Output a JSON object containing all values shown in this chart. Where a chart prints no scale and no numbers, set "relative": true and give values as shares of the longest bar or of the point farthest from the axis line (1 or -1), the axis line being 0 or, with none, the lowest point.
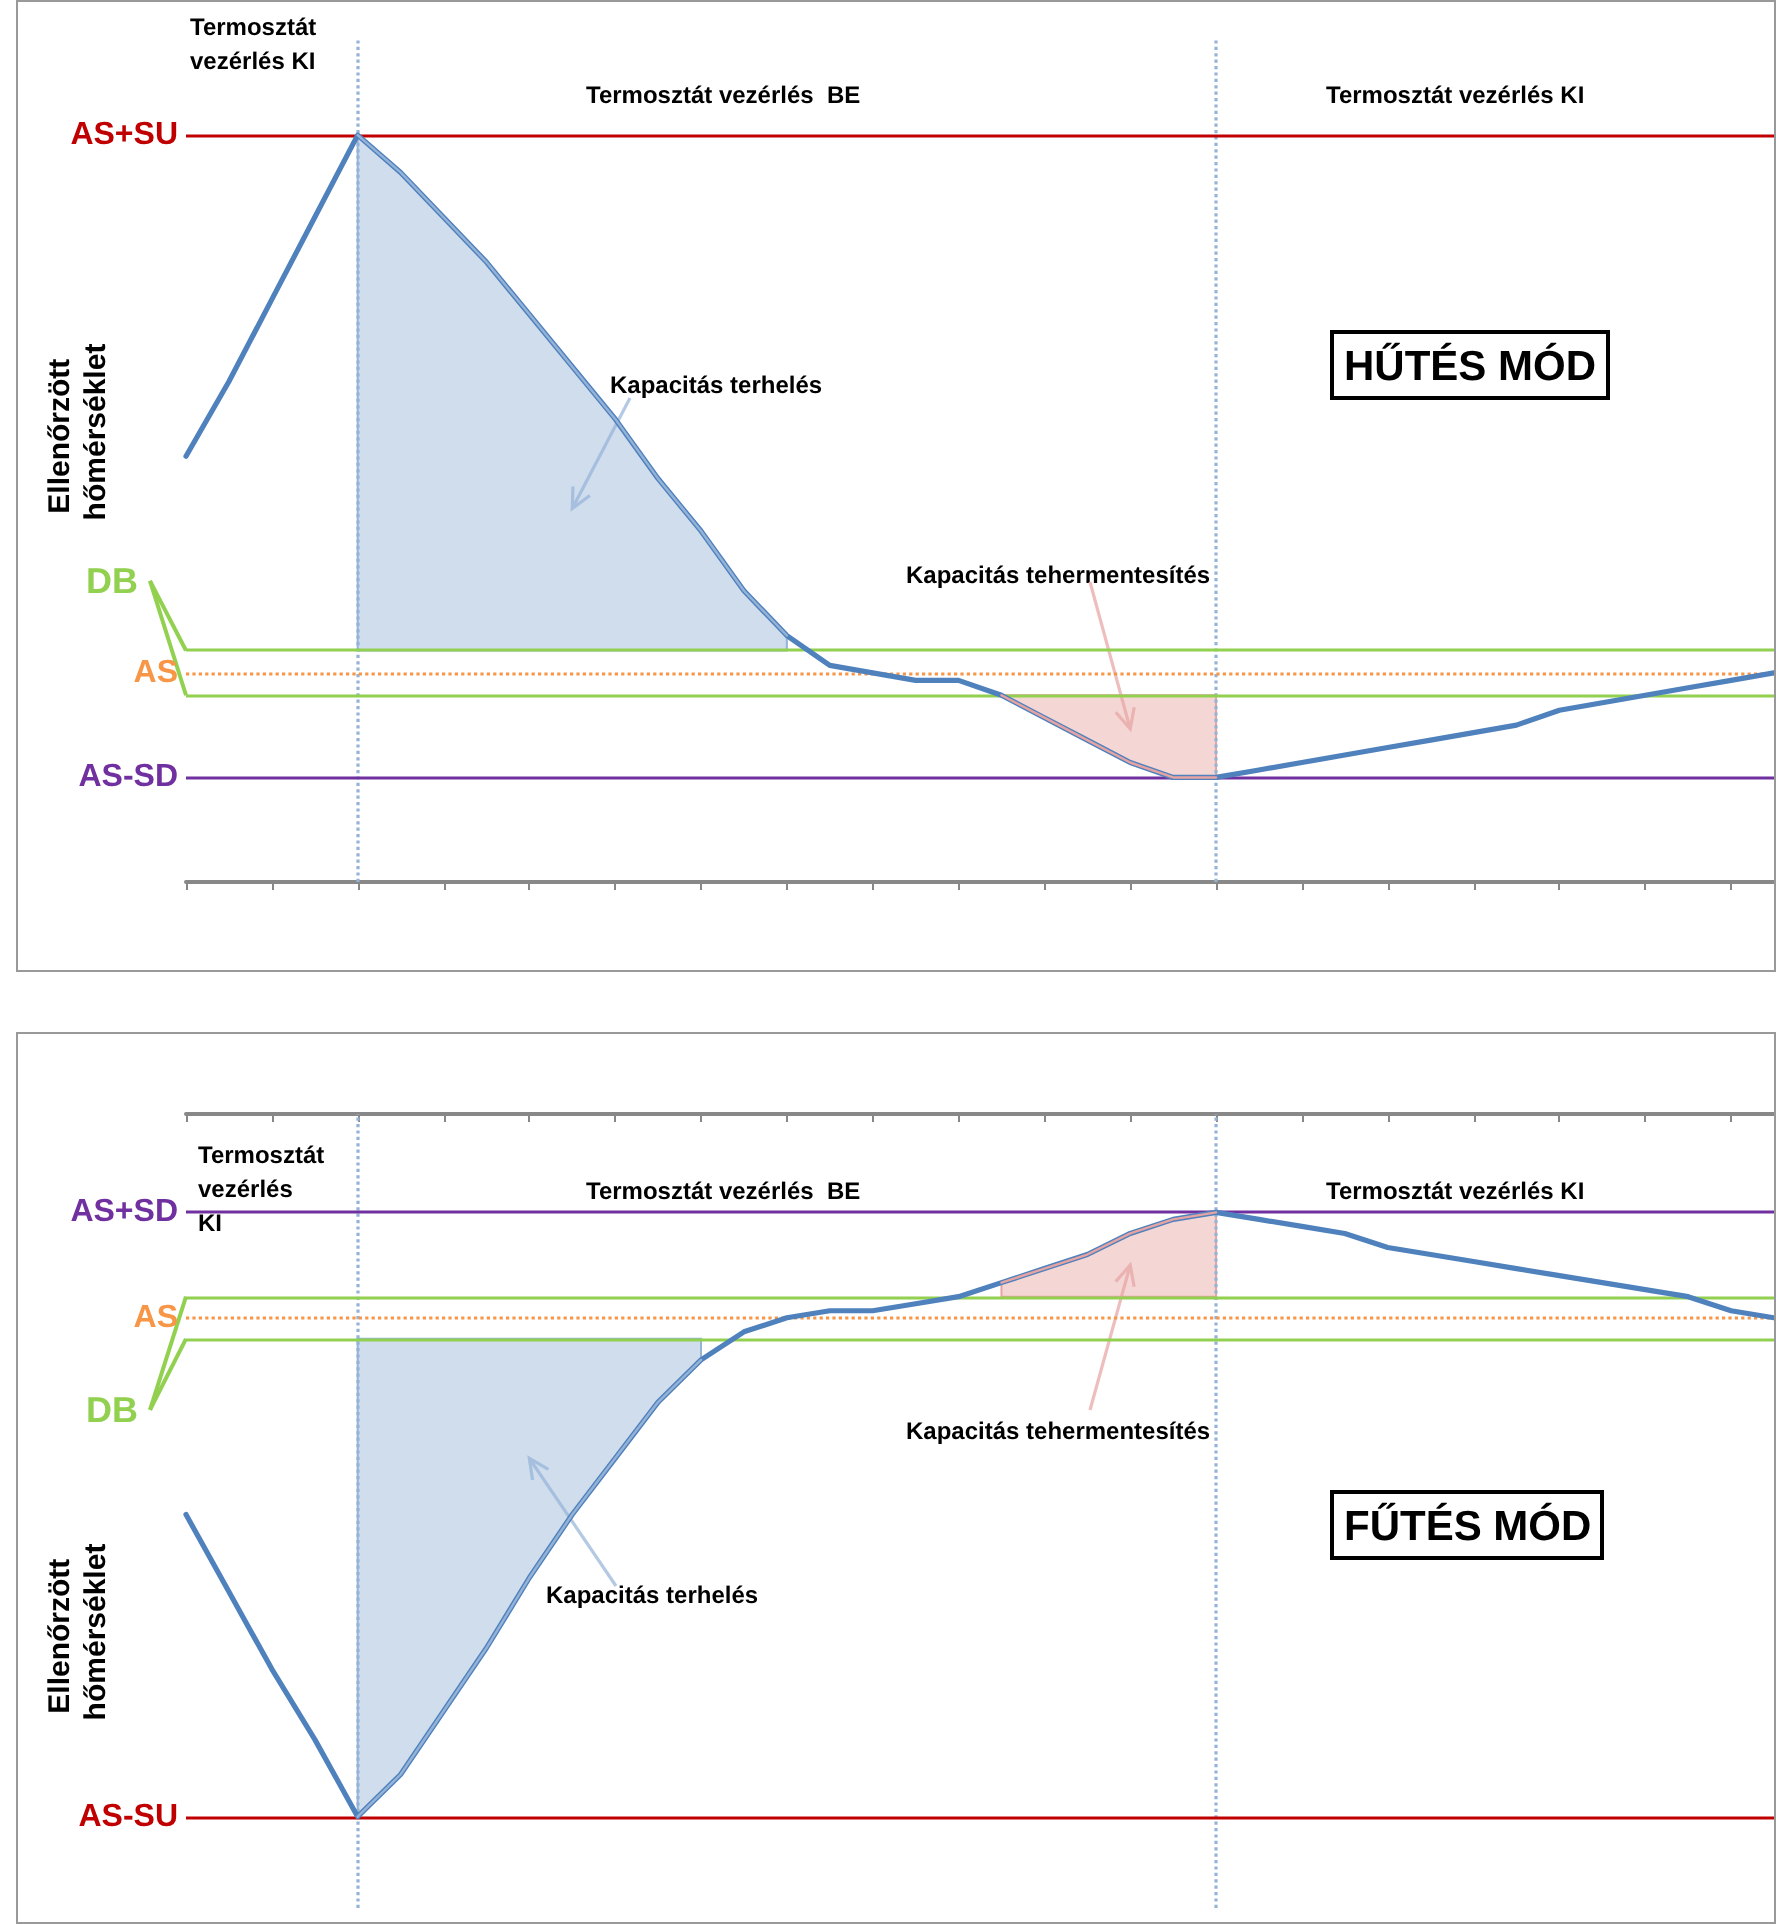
{
  "chart_data": [
    {
      "type": "line",
      "title": "HŰTÉS MÓD",
      "ylabel": "Ellenőrzött hőmérséklet",
      "relative": true,
      "tick_labels": false,
      "marker": "none",
      "categories": [
        null,
        null,
        null,
        null,
        null,
        null,
        null,
        null,
        null,
        null,
        null,
        null,
        null,
        null,
        null,
        null,
        null,
        null,
        null,
        null,
        null,
        null,
        null,
        null,
        null,
        null,
        null,
        null,
        null,
        null,
        null,
        null,
        null,
        null,
        null,
        null,
        null,
        null
      ],
      "series": [
        {
          "color": "#4f81bd",
          "values": [
            0.57,
            0.67,
            0.78,
            0.89,
            1,
            0.95,
            0.89,
            0.83,
            0.76,
            0.69,
            0.62,
            0.54,
            0.47,
            0.39,
            0.33,
            0.29,
            0.28,
            0.27,
            0.27,
            0.25,
            0.22,
            0.19,
            0.16,
            0.14,
            0.14,
            0.15,
            0.16,
            0.17,
            0.18,
            0.19,
            0.2,
            0.21,
            0.23,
            0.24,
            0.25,
            0.26,
            0.27,
            0.28
          ]
        },
        {
          "color": "#95b3d7",
          "values": [
            null,
            null,
            null,
            null,
            1,
            0.95,
            0.89,
            0.83,
            0.76,
            0.69,
            0.62,
            0.54,
            0.47,
            0.39,
            0.33,
            null,
            null,
            null,
            null,
            null,
            null,
            null,
            null,
            null,
            null,
            null,
            null,
            null,
            null,
            null,
            null,
            null,
            null,
            null,
            null,
            null,
            null,
            null
          ],
          "lower": [
            null,
            null,
            null,
            null,
            0.31,
            0.31,
            0.31,
            0.31,
            0.31,
            0.31,
            0.31,
            0.31,
            0.31,
            0.31,
            0.31,
            null,
            null,
            null,
            null,
            null,
            null,
            null,
            null,
            null,
            null,
            null,
            null,
            null,
            null,
            null,
            null,
            null,
            null,
            null,
            null,
            null,
            null,
            null
          ],
          "upper": [
            null,
            null,
            null,
            null,
            1,
            0.95,
            0.89,
            0.83,
            0.76,
            0.69,
            0.62,
            0.54,
            0.47,
            0.39,
            0.33,
            null,
            null,
            null,
            null,
            null,
            null,
            null,
            null,
            null,
            null,
            null,
            null,
            null,
            null,
            null,
            null,
            null,
            null,
            null,
            null,
            null,
            null,
            null
          ]
        },
        {
          "color": "#e6a3a1",
          "values": [
            null,
            null,
            null,
            null,
            null,
            null,
            null,
            null,
            null,
            null,
            null,
            null,
            null,
            null,
            null,
            null,
            null,
            null,
            null,
            0.25,
            0.22,
            0.19,
            0.16,
            0.14,
            0.14,
            null,
            null,
            null,
            null,
            null,
            null,
            null,
            null,
            null,
            null,
            null,
            null,
            null
          ],
          "lower": [
            null,
            null,
            null,
            null,
            null,
            null,
            null,
            null,
            null,
            null,
            null,
            null,
            null,
            null,
            null,
            null,
            null,
            null,
            null,
            0.25,
            0.22,
            0.19,
            0.16,
            0.14,
            0.14,
            null,
            null,
            null,
            null,
            null,
            null,
            null,
            null,
            null,
            null,
            null,
            null,
            null
          ],
          "upper": [
            null,
            null,
            null,
            null,
            null,
            null,
            null,
            null,
            null,
            null,
            null,
            null,
            null,
            null,
            null,
            null,
            null,
            null,
            null,
            0.25,
            0.25,
            0.25,
            0.25,
            0.25,
            0.25,
            null,
            null,
            null,
            null,
            null,
            null,
            null,
            null,
            null,
            null,
            null,
            null,
            null
          ]
        }
      ],
      "ref_lines": [
        {
          "axis": "y",
          "value": 1,
          "label": "AS+SU",
          "color": "#c00000"
        },
        {
          "axis": "y",
          "value": 0.31,
          "label": "DB",
          "color": "#92d050"
        },
        {
          "axis": "y",
          "value": 0.28,
          "label": "AS",
          "color": "#f79646",
          "line_style": "dotted"
        },
        {
          "axis": "y",
          "value": 0.25,
          "color": "#92d050"
        },
        {
          "axis": "y",
          "value": 0.14,
          "label": "AS-SD",
          "color": "#7030a0"
        }
      ],
      "annotations": [
        "Termosztát vezérlés KI",
        "Termosztát vezérlés  BE",
        "Termosztát vezérlés KI",
        "Kapacitás terhelés",
        "Kapacitás tehermentesítés"
      ]
    },
    {
      "type": "line",
      "title": "FŰTÉS MÓD",
      "ylabel": "Ellenőrzött hőmérséklet",
      "relative": true,
      "tick_labels": false,
      "marker": "none",
      "categories": [
        null,
        null,
        null,
        null,
        null,
        null,
        null,
        null,
        null,
        null,
        null,
        null,
        null,
        null,
        null,
        null,
        null,
        null,
        null,
        null,
        null,
        null,
        null,
        null,
        null,
        null,
        null,
        null,
        null,
        null,
        null,
        null,
        null,
        null,
        null,
        null,
        null,
        null
      ],
      "series": [
        {
          "color": "#4f81bd",
          "values": [
            -0.57,
            -0.68,
            -0.79,
            -0.89,
            -1,
            -0.94,
            -0.85,
            -0.76,
            -0.66,
            -0.57,
            -0.49,
            -0.41,
            -0.35,
            -0.31,
            -0.29,
            -0.28,
            -0.28,
            -0.27,
            -0.26,
            -0.24,
            -0.22,
            -0.2,
            -0.17,
            -0.15,
            -0.14,
            -0.15,
            -0.16,
            -0.17,
            -0.19,
            -0.2,
            -0.21,
            -0.22,
            -0.23,
            -0.24,
            -0.25,
            -0.26,
            -0.28,
            -0.29
          ]
        },
        {
          "color": "#95b3d7",
          "values": [
            null,
            null,
            null,
            null,
            -1,
            -0.94,
            -0.85,
            -0.76,
            -0.66,
            -0.57,
            -0.49,
            -0.41,
            -0.35,
            null,
            null,
            null,
            null,
            null,
            null,
            null,
            null,
            null,
            null,
            null,
            null,
            null,
            null,
            null,
            null,
            null,
            null,
            null,
            null,
            null,
            null,
            null,
            null,
            null
          ],
          "lower": [
            null,
            null,
            null,
            null,
            -1,
            -0.94,
            -0.85,
            -0.76,
            -0.66,
            -0.57,
            -0.49,
            -0.41,
            -0.35,
            null,
            null,
            null,
            null,
            null,
            null,
            null,
            null,
            null,
            null,
            null,
            null,
            null,
            null,
            null,
            null,
            null,
            null,
            null,
            null,
            null,
            null,
            null,
            null,
            null
          ],
          "upper": [
            null,
            null,
            null,
            null,
            -0.32,
            -0.32,
            -0.32,
            -0.32,
            -0.32,
            -0.32,
            -0.32,
            -0.32,
            -0.32,
            null,
            null,
            null,
            null,
            null,
            null,
            null,
            null,
            null,
            null,
            null,
            null,
            null,
            null,
            null,
            null,
            null,
            null,
            null,
            null,
            null,
            null,
            null,
            null,
            null
          ]
        },
        {
          "color": "#e6a3a1",
          "values": [
            null,
            null,
            null,
            null,
            null,
            null,
            null,
            null,
            null,
            null,
            null,
            null,
            null,
            null,
            null,
            null,
            null,
            null,
            null,
            -0.24,
            -0.22,
            -0.2,
            -0.17,
            -0.15,
            -0.14,
            null,
            null,
            null,
            null,
            null,
            null,
            null,
            null,
            null,
            null,
            null,
            null,
            null
          ],
          "lower": [
            null,
            null,
            null,
            null,
            null,
            null,
            null,
            null,
            null,
            null,
            null,
            null,
            null,
            null,
            null,
            null,
            null,
            null,
            null,
            -0.26,
            -0.26,
            -0.26,
            -0.26,
            -0.26,
            -0.26,
            null,
            null,
            null,
            null,
            null,
            null,
            null,
            null,
            null,
            null,
            null,
            null,
            null
          ],
          "upper": [
            null,
            null,
            null,
            null,
            null,
            null,
            null,
            null,
            null,
            null,
            null,
            null,
            null,
            null,
            null,
            null,
            null,
            null,
            null,
            -0.24,
            -0.22,
            -0.2,
            -0.17,
            -0.15,
            -0.14,
            null,
            null,
            null,
            null,
            null,
            null,
            null,
            null,
            null,
            null,
            null,
            null,
            null
          ]
        }
      ],
      "ref_lines": [
        {
          "axis": "y",
          "value": -0.14,
          "label": "AS+SD",
          "color": "#7030a0"
        },
        {
          "axis": "y",
          "value": -0.26,
          "color": "#92d050"
        },
        {
          "axis": "y",
          "value": -0.29,
          "label": "AS",
          "color": "#f79646",
          "line_style": "dotted"
        },
        {
          "axis": "y",
          "value": -0.32,
          "label": "DB",
          "color": "#92d050"
        },
        {
          "axis": "y",
          "value": -1,
          "label": "AS-SU",
          "color": "#c00000"
        }
      ],
      "annotations": [
        "Termosztát vezérlés KI",
        "Termosztát vezérlés  BE",
        "Termosztát vezérlés KI",
        "Kapacitás tehermentesítés",
        "Kapacitás terhelés"
      ]
    }
  ]
}
